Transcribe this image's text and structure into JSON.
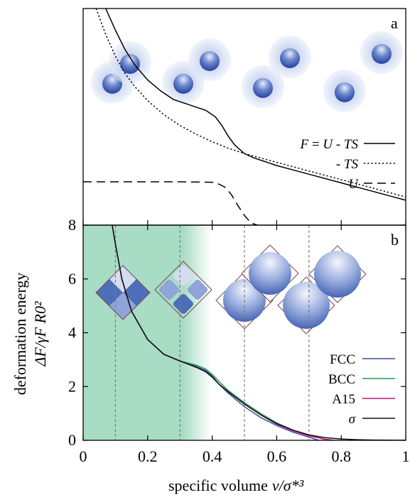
{
  "chart_data": [
    {
      "panel": "a",
      "type": "line",
      "panel_label": "a",
      "xlim": [
        0,
        1
      ],
      "grid": false,
      "legend_position": "right",
      "series": [
        {
          "name": "F = U - TS",
          "style": "solid",
          "color": "#000000",
          "x": [
            0.07,
            0.1,
            0.13,
            0.16,
            0.2,
            0.24,
            0.28,
            0.32,
            0.35,
            0.38,
            0.41,
            0.43,
            0.45,
            0.47,
            0.5,
            0.53,
            0.56,
            0.6,
            0.65,
            0.7,
            0.75,
            0.8,
            0.85,
            0.9,
            0.95,
            1.0
          ],
          "y": [
            1.0,
            0.9,
            0.81,
            0.74,
            0.67,
            0.62,
            0.58,
            0.56,
            0.545,
            0.53,
            0.5,
            0.46,
            0.41,
            0.37,
            0.33,
            0.31,
            0.295,
            0.275,
            0.255,
            0.235,
            0.215,
            0.195,
            0.175,
            0.155,
            0.135,
            0.115
          ]
        },
        {
          "name": "- TS",
          "style": "dotted",
          "color": "#000000",
          "x": [
            0.04,
            0.07,
            0.1,
            0.13,
            0.16,
            0.2,
            0.25,
            0.3,
            0.35,
            0.4,
            0.45,
            0.5,
            0.55,
            0.6,
            0.7,
            0.8,
            0.9,
            1.0
          ],
          "y": [
            1.0,
            0.88,
            0.78,
            0.7,
            0.64,
            0.575,
            0.51,
            0.46,
            0.42,
            0.385,
            0.355,
            0.33,
            0.31,
            0.29,
            0.25,
            0.21,
            0.17,
            0.13
          ]
        },
        {
          "name": "U",
          "style": "dashed",
          "color": "#000000",
          "x": [
            0.0,
            0.1,
            0.2,
            0.3,
            0.4,
            0.42,
            0.44,
            0.46,
            0.48,
            0.5,
            0.52,
            0.54
          ],
          "y": [
            0.2,
            0.2,
            0.2,
            0.2,
            0.198,
            0.19,
            0.175,
            0.14,
            0.09,
            0.045,
            0.01,
            0.0
          ]
        }
      ]
    },
    {
      "panel": "b",
      "type": "line",
      "panel_label": "b",
      "xlabel": "specific volume",
      "xlabel_symbol": "v/σ*³",
      "ylabel": "deformation energy",
      "ylabel_symbol": "ΔF/γF R0²",
      "xlim": [
        0,
        1
      ],
      "ylim": [
        0,
        8
      ],
      "xticks": [
        "0",
        "0.2",
        "0.4",
        "0.6",
        "0.8",
        "1"
      ],
      "yticks": [
        "0",
        "2",
        "4",
        "6",
        "8"
      ],
      "grid": false,
      "reference_lines_x": [
        0.1,
        0.3,
        0.5,
        0.7
      ],
      "shaded_region_x": [
        0,
        0.4
      ],
      "shaded_color": "#a8dcc4",
      "legend_position": "bottom-right",
      "series": [
        {
          "name": "FCC",
          "color": "#3b4fa0",
          "x": [
            0.09,
            0.1,
            0.12,
            0.15,
            0.2,
            0.25,
            0.3,
            0.35,
            0.38,
            0.4,
            0.42,
            0.45,
            0.5,
            0.55,
            0.6,
            0.65,
            0.7,
            0.73
          ],
          "y": [
            8.0,
            7.3,
            6.0,
            4.8,
            3.75,
            3.2,
            2.95,
            2.75,
            2.6,
            2.4,
            2.1,
            1.75,
            1.25,
            0.85,
            0.55,
            0.3,
            0.12,
            0.0
          ]
        },
        {
          "name": "BCC",
          "color": "#1e9e50",
          "x": [
            0.09,
            0.1,
            0.12,
            0.15,
            0.2,
            0.25,
            0.3,
            0.35,
            0.38,
            0.4,
            0.42,
            0.45,
            0.5,
            0.55,
            0.6,
            0.65,
            0.7,
            0.75,
            0.77
          ],
          "y": [
            8.0,
            7.3,
            6.0,
            4.8,
            3.75,
            3.2,
            2.95,
            2.8,
            2.65,
            2.45,
            2.2,
            1.85,
            1.4,
            1.0,
            0.65,
            0.38,
            0.18,
            0.04,
            0.0
          ]
        },
        {
          "name": "A15",
          "color": "#c0167c",
          "x": [
            0.09,
            0.1,
            0.12,
            0.15,
            0.2,
            0.25,
            0.3,
            0.35,
            0.38,
            0.4,
            0.42,
            0.45,
            0.5,
            0.55,
            0.6,
            0.65,
            0.7,
            0.75,
            0.78
          ],
          "y": [
            8.0,
            7.3,
            6.0,
            4.8,
            3.75,
            3.2,
            2.95,
            2.72,
            2.55,
            2.35,
            2.1,
            1.8,
            1.35,
            0.95,
            0.6,
            0.35,
            0.17,
            0.04,
            0.0
          ]
        },
        {
          "name": "σ",
          "color": "#111111",
          "x": [
            0.09,
            0.1,
            0.12,
            0.15,
            0.2,
            0.25,
            0.3,
            0.35,
            0.38,
            0.4,
            0.42,
            0.45,
            0.5,
            0.55,
            0.6,
            0.65,
            0.7,
            0.75,
            0.8,
            0.85,
            0.9,
            0.95,
            1.0
          ],
          "y": [
            8.0,
            7.3,
            6.0,
            4.8,
            3.75,
            3.2,
            2.95,
            2.72,
            2.55,
            2.35,
            2.1,
            1.8,
            1.35,
            0.95,
            0.62,
            0.38,
            0.2,
            0.1,
            0.05,
            0.025,
            0.01,
            0.004,
            0.0
          ]
        }
      ]
    }
  ],
  "colors": {
    "sphere_core": "#2a46a8",
    "sphere_halo": "#c9d4ee",
    "cell_dark": "#4e6fb8",
    "cell_light": "#d4dcf0",
    "cell_border": "#7a4652"
  }
}
